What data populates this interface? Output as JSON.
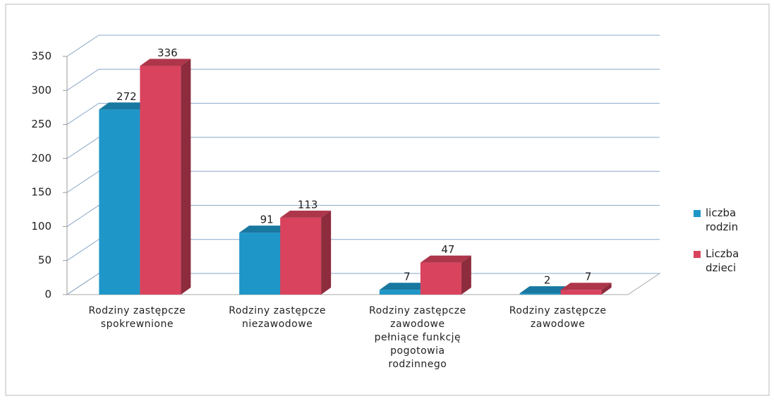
{
  "chart_data": {
    "type": "bar3d",
    "categories": [
      "Rodziny zastępcze\nspokrewnione",
      "Rodziny zastępcze\nniezawodowe",
      "Rodziny zastępcze\nzawodowe\npełniące funkcję\npogotowia\nrodzinnego",
      "Rodziny zastępcze\nzawodowe"
    ],
    "series": [
      {
        "name": "liczba\nrodzin",
        "color": "#1f96c8",
        "values": [
          272,
          91,
          7,
          2
        ]
      },
      {
        "name": "Liczba\ndzieci",
        "color": "#d9435e",
        "values": [
          336,
          113,
          47,
          7
        ]
      }
    ],
    "ylim": [
      0,
      350
    ],
    "yticks": [
      0,
      50,
      100,
      150,
      200,
      250,
      300,
      350
    ],
    "grid": true,
    "legend": "right"
  }
}
